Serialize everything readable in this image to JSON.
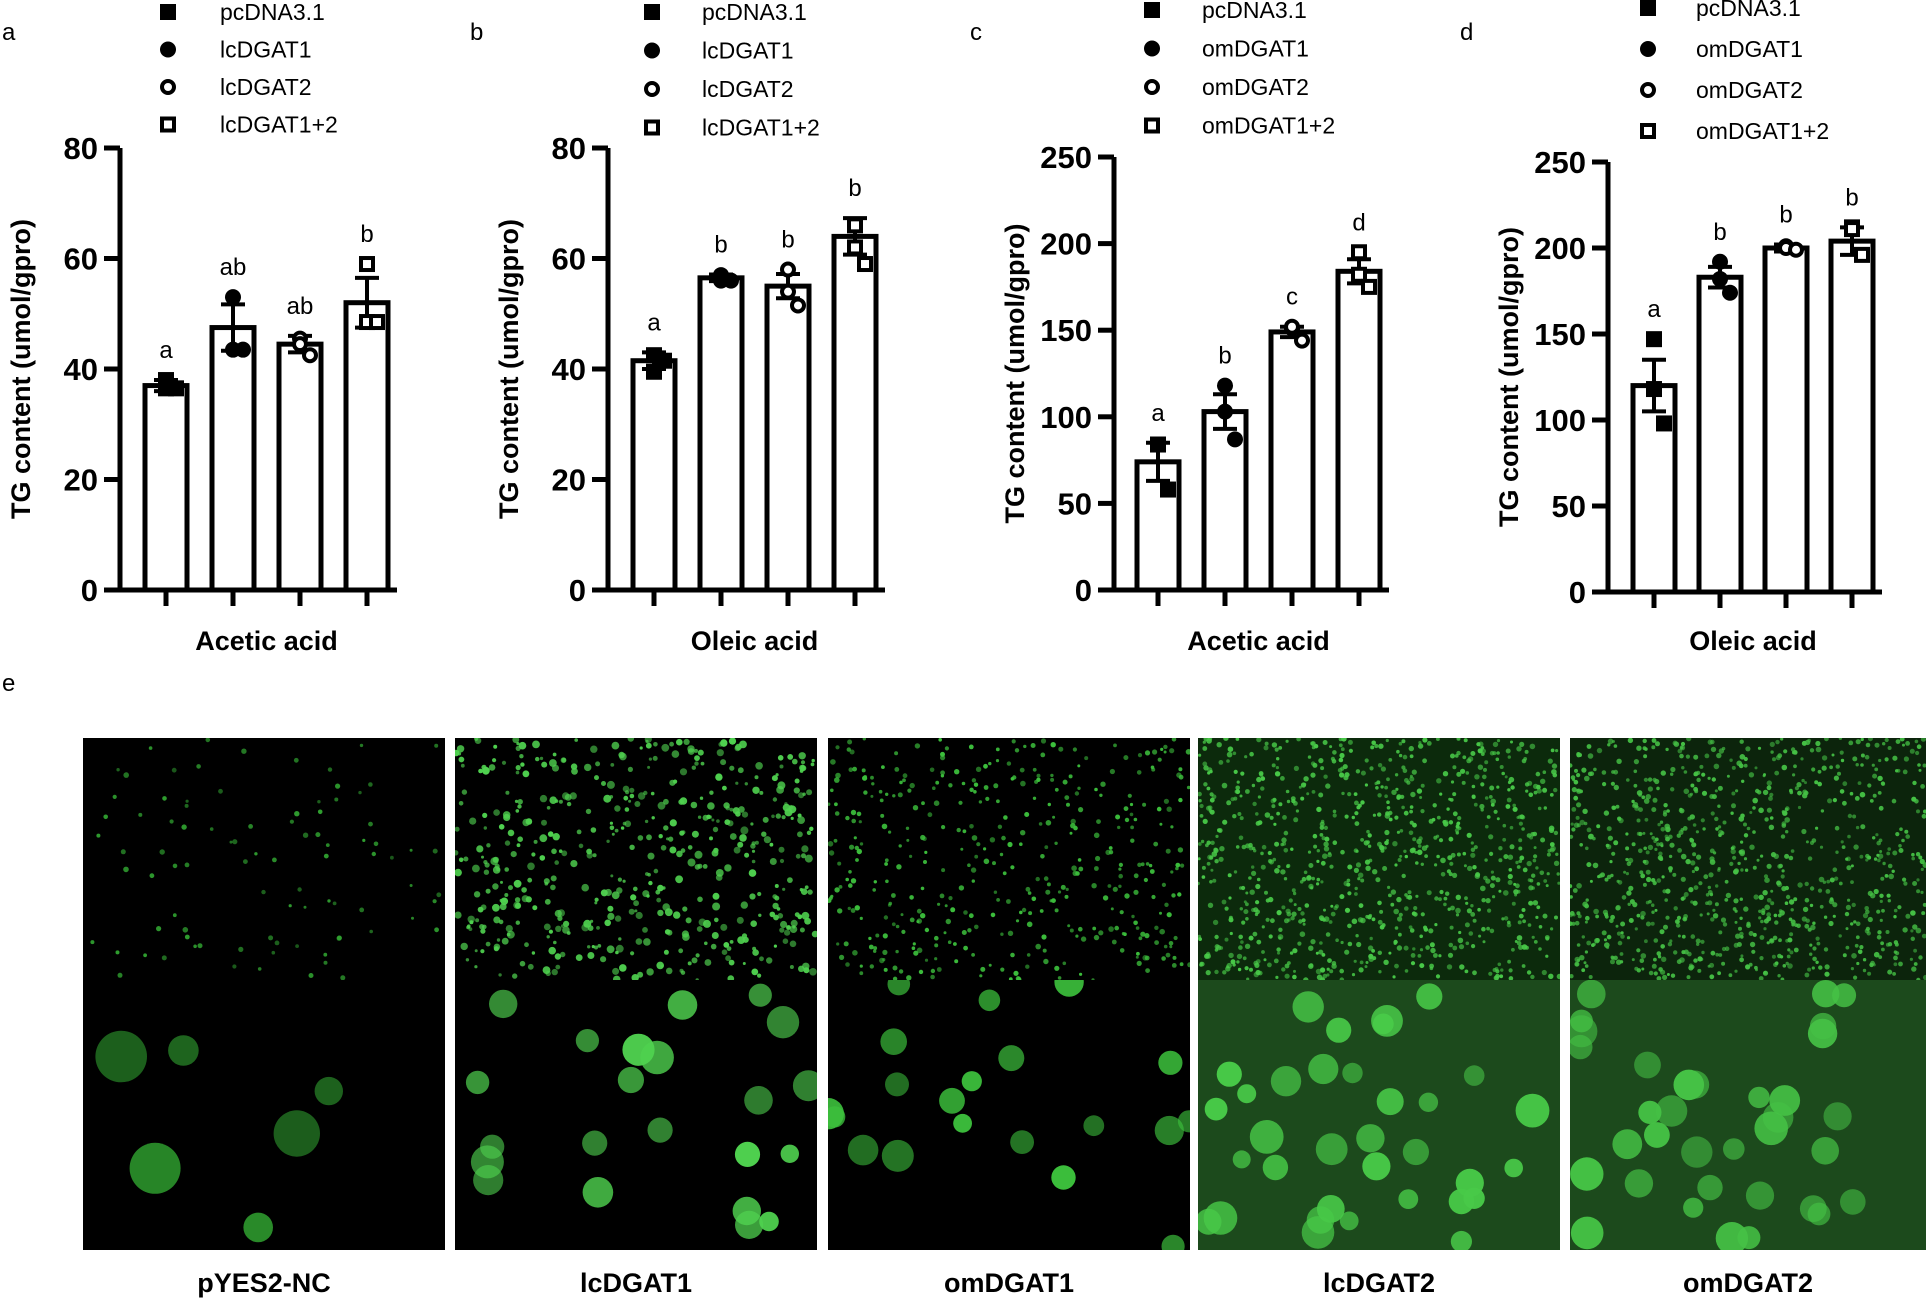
{
  "figure": {
    "panel_e_letter": "e"
  },
  "chart_data": [
    {
      "panel": "a",
      "type": "bar",
      "categories": [
        "pcDNA3.1",
        "lcDGAT1",
        "lcDGAT2",
        "lcDGAT1+2"
      ],
      "legend": [
        "pcDNA3.1",
        "lcDGAT1",
        "lcDGAT2",
        "lcDGAT1+2"
      ],
      "markers": [
        "square-filled",
        "circle-filled",
        "circle-open",
        "square-open"
      ],
      "values": [
        37,
        47.5,
        44.5,
        52
      ],
      "errors": [
        1,
        4.2,
        1.5,
        4.5
      ],
      "points": [
        [
          38,
          36.5,
          36.5
        ],
        [
          53,
          43.5,
          43.5
        ],
        [
          45.5,
          44.5,
          42.5
        ],
        [
          59,
          48.5,
          48.5
        ]
      ],
      "letters": [
        "a",
        "ab",
        "ab",
        "b"
      ],
      "xlabel": "Acetic acid",
      "ylabel": "TG content (umol/gpro)",
      "ylim": [
        0,
        80
      ],
      "yticks": [
        0,
        20,
        40,
        60,
        80
      ]
    },
    {
      "panel": "b",
      "type": "bar",
      "categories": [
        "pcDNA3.1",
        "lcDGAT1",
        "lcDGAT2",
        "lcDGAT1+2"
      ],
      "legend": [
        "pcDNA3.1",
        "lcDGAT1",
        "lcDGAT2",
        "lcDGAT1+2"
      ],
      "markers": [
        "square-filled",
        "circle-filled",
        "circle-open",
        "square-open"
      ],
      "values": [
        41.5,
        56.5,
        55,
        64
      ],
      "errors": [
        1.5,
        0.6,
        2.2,
        3.3
      ],
      "points": [
        [
          42.5,
          39.5,
          41.5
        ],
        [
          57,
          56,
          56
        ],
        [
          58,
          54,
          51.5
        ],
        [
          66,
          62,
          59
        ]
      ],
      "letters": [
        "a",
        "b",
        "b",
        "b"
      ],
      "xlabel": "Oleic acid",
      "ylabel": "TG content (umol/gpro)",
      "ylim": [
        0,
        80
      ],
      "yticks": [
        0,
        20,
        40,
        60,
        80
      ]
    },
    {
      "panel": "c",
      "type": "bar",
      "categories": [
        "pcDNA3.1",
        "omDGAT1",
        "omDGAT2",
        "omDGAT1+2"
      ],
      "legend": [
        "pcDNA3.1",
        "omDGAT1",
        "omDGAT2",
        "omDGAT1+2"
      ],
      "markers": [
        "square-filled",
        "circle-filled",
        "circle-open",
        "square-open"
      ],
      "values": [
        74,
        103,
        149,
        184
      ],
      "errors": [
        11,
        10,
        3,
        7
      ],
      "points": [
        [
          84,
          84,
          58
        ],
        [
          118,
          103,
          87
        ],
        [
          151,
          152,
          144
        ],
        [
          195,
          182,
          175
        ]
      ],
      "letters": [
        "a",
        "b",
        "c",
        "d"
      ],
      "xlabel": "Acetic acid",
      "ylabel": "TG content (umol/gpro)",
      "ylim": [
        0,
        250
      ],
      "yticks": [
        0,
        50,
        100,
        150,
        200,
        250
      ]
    },
    {
      "panel": "d",
      "type": "bar",
      "categories": [
        "pcDNA3.1",
        "omDGAT1",
        "omDGAT2",
        "omDGAT1+2"
      ],
      "legend": [
        "pcDNA3.1",
        "omDGAT1",
        "omDGAT2",
        "omDGAT1+2"
      ],
      "markers": [
        "square-filled",
        "circle-filled",
        "circle-open",
        "square-open"
      ],
      "values": [
        120,
        183,
        200,
        204
      ],
      "errors": [
        15,
        6,
        2,
        8
      ],
      "points": [
        [
          147,
          118,
          98
        ],
        [
          192,
          182,
          174
        ],
        [
          201,
          200,
          199
        ],
        [
          212,
          211,
          196
        ]
      ],
      "letters": [
        "a",
        "b",
        "b",
        "b"
      ],
      "xlabel": "Oleic acid",
      "ylabel": "TG content (umol/gpro)",
      "ylim": [
        0,
        250
      ],
      "yticks": [
        0,
        50,
        100,
        150,
        200,
        250
      ]
    }
  ],
  "micrographs": [
    {
      "label": "pYES2-NC",
      "style": "sparse",
      "color": "#000000",
      "cell_color": "#2f9e2f"
    },
    {
      "label": "lcDGAT1",
      "style": "dense-clusters",
      "color": "#000000",
      "cell_color": "#4fd14f"
    },
    {
      "label": "omDGAT1",
      "style": "fine",
      "color": "#000000",
      "cell_color": "#3cbf3c"
    },
    {
      "label": "lcDGAT2",
      "style": "very-dense",
      "color": "#0c2a0c",
      "cell_color": "#48c948"
    },
    {
      "label": "omDGAT2",
      "style": "very-dense",
      "color": "#0c240c",
      "cell_color": "#45c145"
    }
  ]
}
